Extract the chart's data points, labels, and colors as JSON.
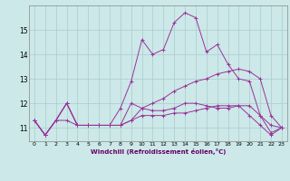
{
  "x": [
    0,
    1,
    2,
    3,
    4,
    5,
    6,
    7,
    8,
    9,
    10,
    11,
    12,
    13,
    14,
    15,
    16,
    17,
    18,
    19,
    20,
    21,
    22,
    23
  ],
  "lines": [
    [
      11.3,
      10.7,
      11.3,
      11.3,
      11.1,
      11.1,
      11.1,
      11.1,
      11.1,
      11.3,
      11.5,
      11.5,
      11.5,
      11.6,
      11.6,
      11.7,
      11.8,
      11.9,
      11.9,
      11.9,
      11.5,
      11.1,
      10.7,
      11.0
    ],
    [
      11.3,
      10.7,
      11.3,
      12.0,
      11.1,
      11.1,
      11.1,
      11.1,
      11.1,
      12.0,
      11.8,
      11.7,
      11.7,
      11.8,
      12.0,
      12.0,
      11.9,
      11.8,
      11.8,
      11.9,
      11.9,
      11.5,
      11.1,
      11.0
    ],
    [
      11.3,
      10.7,
      11.3,
      12.0,
      11.1,
      11.1,
      11.1,
      11.1,
      11.8,
      12.9,
      14.6,
      14.0,
      14.2,
      15.3,
      15.7,
      15.5,
      14.1,
      14.4,
      13.6,
      13.0,
      12.9,
      11.5,
      10.8,
      11.0
    ],
    [
      11.3,
      10.7,
      11.3,
      12.0,
      11.1,
      11.1,
      11.1,
      11.1,
      11.1,
      11.3,
      11.8,
      12.0,
      12.2,
      12.5,
      12.7,
      12.9,
      13.0,
      13.2,
      13.3,
      13.4,
      13.3,
      13.0,
      11.5,
      11.0
    ]
  ],
  "color": "#993399",
  "bgcolor": "#cce8e8",
  "xlabel": "Windchill (Refroidissement éolien,°C)",
  "ylabel_ticks": [
    11,
    12,
    13,
    14,
    15
  ],
  "xlim": [
    -0.5,
    23.5
  ],
  "ylim": [
    10.45,
    16.0
  ],
  "grid_color": "#aacccc",
  "marker": "+"
}
